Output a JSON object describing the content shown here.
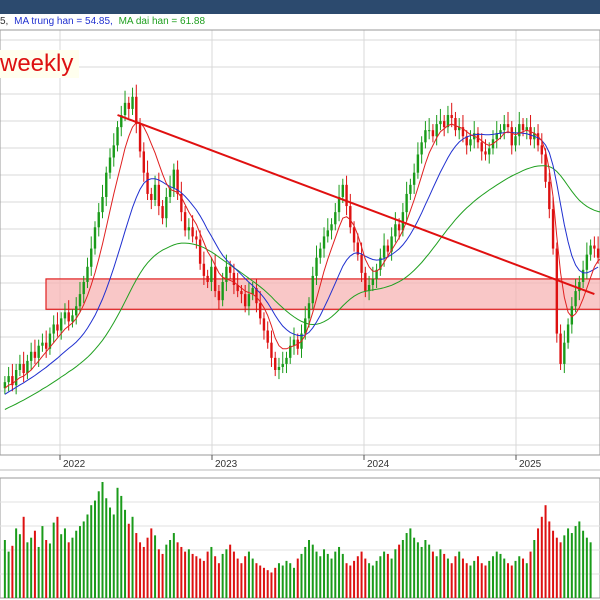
{
  "header": {
    "ma_short_partial": "5,",
    "ma_mid_label": "MA trung han = 54.85,",
    "ma_long_label": "MA dai han = 61.88"
  },
  "timeframe_label": "weekly",
  "colors": {
    "header_bar": "#2c4a6e",
    "up": "#1a9b1a",
    "down": "#dd1111",
    "ma_short": "#e02020",
    "ma_mid": "#2030d0",
    "ma_long": "#20a020",
    "trendline": "#e01010",
    "support_zone": "#f7b4b4"
  },
  "chart_data": [
    {
      "type": "candlestick",
      "x_axis": {
        "ticks": [
          "2022",
          "2023",
          "2024",
          "2025"
        ]
      },
      "price": {
        "closes": [
          34,
          36,
          33,
          38,
          40,
          37,
          41,
          44,
          42,
          46,
          47,
          45,
          50,
          53,
          51,
          55,
          57,
          54,
          56,
          59,
          63,
          67,
          72,
          78,
          85,
          90,
          95,
          103,
          108,
          112,
          118,
          122,
          126,
          124,
          128,
          119,
          110,
          103,
          96,
          94,
          99,
          92,
          88,
          95,
          98,
          104,
          96,
          90,
          84,
          85,
          82,
          81,
          73,
          69,
          67,
          72,
          64,
          61,
          67,
          72,
          70,
          66,
          64,
          63,
          59,
          63,
          65,
          60,
          55,
          51,
          47,
          42,
          38,
          39,
          40,
          42,
          46,
          48,
          45,
          50,
          55,
          60,
          69,
          75,
          78,
          82,
          84,
          86,
          90,
          95,
          99,
          92,
          85,
          80,
          76,
          70,
          64,
          66,
          68,
          71,
          75,
          79,
          77,
          82,
          86,
          84,
          90,
          96,
          99,
          103,
          109,
          113,
          117,
          117,
          115,
          119,
          120,
          118,
          122,
          121,
          117,
          118,
          115,
          112,
          114,
          116,
          113,
          110,
          109,
          111,
          114,
          116,
          117,
          119,
          118,
          112,
          115,
          119,
          117,
          118,
          114,
          116,
          112,
          109,
          100,
          91,
          78,
          50,
          40,
          47,
          53,
          59,
          64,
          67,
          71,
          76,
          79,
          78,
          75
        ],
        "ma_short_values": [
          32,
          33,
          33.5,
          34.5,
          35.5,
          36,
          37,
          38,
          39.5,
          41,
          42.5,
          44,
          45.5,
          47,
          48.5,
          50,
          51.5,
          52.5,
          53.5,
          55,
          57,
          59.5,
          62.5,
          66,
          70,
          74.5,
          79.5,
          85,
          90.5,
          96,
          101,
          106,
          111,
          115,
          118,
          119.5,
          119.5,
          118,
          115.5,
          112.5,
          109.5,
          106,
          102.5,
          99.5,
          97.5,
          97,
          96.5,
          95,
          92.5,
          90,
          88,
          86,
          83,
          80,
          77,
          75,
          72.5,
          70,
          68.5,
          68,
          67.5,
          67,
          66,
          65,
          64,
          63.5,
          63,
          62,
          60.5,
          58.5,
          56,
          52.5,
          48.5,
          46,
          45,
          45,
          45.5,
          46,
          46.5,
          47.5,
          49.5,
          53,
          57,
          61.5,
          66,
          70.5,
          74.5,
          78,
          81.5,
          85,
          88,
          88.5,
          87.5,
          85.5,
          82.5,
          78.5,
          74.5,
          72,
          70.5,
          70.5,
          71.5,
          73.5,
          75.5,
          77.5,
          79.5,
          81.5,
          84,
          87,
          90.5,
          94,
          98,
          102,
          106,
          109.5,
          112,
          114.5,
          116.5,
          117.5,
          118.5,
          119,
          118.5,
          118,
          117.5,
          116.5,
          115.5,
          115,
          114.5,
          113.5,
          112.5,
          112,
          112.5,
          113.5,
          114.5,
          116,
          116.5,
          116,
          115.5,
          116,
          116.5,
          117,
          116.5,
          116,
          115,
          113.5,
          110,
          104,
          95,
          82,
          70,
          62,
          57,
          55.5,
          56.5,
          58.5,
          61.5,
          65,
          68.5,
          72,
          74,
          75
        ],
        "ma_mid_values": [
          30,
          30.8,
          31.5,
          32.3,
          33.1,
          33.8,
          34.6,
          35.4,
          36.2,
          37.1,
          38,
          38.9,
          39.9,
          40.9,
          41.9,
          43,
          44.1,
          45.1,
          46.1,
          47.2,
          48.5,
          50,
          51.8,
          53.8,
          56,
          58.6,
          61.4,
          64.6,
          68,
          71.7,
          75.6,
          79.6,
          83.7,
          87.7,
          91.5,
          94.8,
          97.5,
          99.5,
          100.6,
          101,
          101,
          100.6,
          99.9,
          99.1,
          98.4,
          97.9,
          97.3,
          96.4,
          95.2,
          93.8,
          92.3,
          90.7,
          88.8,
          86.6,
          84.2,
          82.1,
          79.9,
          77.7,
          75.8,
          74.3,
          73,
          71.8,
          70.6,
          69.4,
          68.1,
          66.9,
          65.8,
          64.6,
          63.3,
          61.8,
          60.1,
          58.1,
          56,
          54.1,
          52.5,
          51.3,
          50.4,
          49.8,
          49.4,
          49.3,
          49.6,
          50.4,
          51.9,
          53.8,
          56,
          58.5,
          61.1,
          63.8,
          66.6,
          69.4,
          72.2,
          74.2,
          75.6,
          76.4,
          76.6,
          76.2,
          75.5,
          74.9,
          74.4,
          74.2,
          74.3,
          74.7,
          75.3,
          76,
          76.9,
          77.9,
          79.2,
          80.8,
          82.7,
          84.8,
          87.2,
          89.8,
          92.5,
          95.2,
          97.9,
          100.6,
          103.2,
          105.6,
          107.9,
          110,
          111.7,
          113.1,
          114.1,
          114.8,
          115.2,
          115.5,
          115.6,
          115.6,
          115.5,
          115.5,
          115.6,
          115.8,
          116,
          116.2,
          116.3,
          116.2,
          116.1,
          116.1,
          116,
          115.8,
          115.4,
          115,
          114.5,
          113.6,
          112.1,
          109.6,
          105.3,
          99.3,
          92.5,
          85.9,
          80.2,
          75.7,
          72.6,
          70.8,
          70,
          70,
          70.5,
          71.2,
          71.9
        ],
        "ma_long_values": [
          25,
          25.6,
          26.2,
          26.8,
          27.5,
          28.1,
          28.8,
          29.5,
          30.2,
          30.9,
          31.7,
          32.4,
          33.2,
          34,
          34.8,
          35.7,
          36.5,
          37.4,
          38.2,
          39.1,
          40.1,
          41.1,
          42.2,
          43.4,
          44.8,
          46.2,
          47.8,
          49.6,
          51.5,
          53.6,
          55.8,
          58.1,
          60.5,
          63,
          65.4,
          67.7,
          69.8,
          71.7,
          73.3,
          74.6,
          75.8,
          76.7,
          77.5,
          78.1,
          78.7,
          79.2,
          79.6,
          79.8,
          79.8,
          79.7,
          79.5,
          79.2,
          78.8,
          78.3,
          77.6,
          76.9,
          76.1,
          75.2,
          74.3,
          73.4,
          72.6,
          71.7,
          70.9,
          70,
          69.1,
          68.2,
          67.3,
          66.4,
          65.4,
          64.4,
          63.3,
          62.1,
          60.8,
          59.6,
          58.5,
          57.4,
          56.4,
          55.5,
          54.7,
          54,
          53.5,
          53.1,
          53,
          53.1,
          53.4,
          53.9,
          54.6,
          55.5,
          56.6,
          57.8,
          59.1,
          60.3,
          61.4,
          62.3,
          63,
          63.6,
          63.9,
          64.2,
          64.4,
          64.6,
          64.8,
          65.1,
          65.5,
          65.9,
          66.5,
          67.1,
          67.8,
          68.7,
          69.7,
          70.8,
          72.1,
          73.4,
          74.9,
          76.4,
          78,
          79.6,
          81.3,
          82.9,
          84.5,
          86,
          87.5,
          88.9,
          90.2,
          91.4,
          92.5,
          93.6,
          94.6,
          95.5,
          96.4,
          97.3,
          98.1,
          98.9,
          99.7,
          100.5,
          101.2,
          101.9,
          102.5,
          103.1,
          103.7,
          104.2,
          104.6,
          105,
          105.2,
          105.3,
          105.3,
          105,
          104.4,
          103.4,
          102,
          100.4,
          98.6,
          96.9,
          95.3,
          93.9,
          92.8,
          91.9,
          91.2,
          90.6,
          90.2,
          89.9
        ],
        "y_range": [
          10,
          150
        ]
      },
      "volume": {
        "values": [
          50,
          40,
          45,
          60,
          55,
          70,
          48,
          52,
          58,
          44,
          62,
          50,
          47,
          65,
          70,
          55,
          60,
          48,
          52,
          58,
          62,
          66,
          72,
          80,
          84,
          92,
          100,
          86,
          78,
          72,
          95,
          88,
          76,
          64,
          70,
          56,
          48,
          44,
          52,
          60,
          54,
          42,
          38,
          46,
          50,
          56,
          48,
          44,
          40,
          42,
          38,
          36,
          34,
          32,
          40,
          44,
          36,
          30,
          38,
          42,
          46,
          40,
          34,
          30,
          36,
          40,
          34,
          30,
          28,
          26,
          24,
          22,
          26,
          30,
          28,
          32,
          30,
          26,
          34,
          38,
          44,
          50,
          46,
          40,
          36,
          42,
          38,
          34,
          40,
          44,
          38,
          30,
          28,
          32,
          36,
          40,
          34,
          30,
          28,
          32,
          36,
          40,
          38,
          34,
          42,
          46,
          50,
          56,
          60,
          52,
          48,
          44,
          50,
          46,
          40,
          36,
          42,
          38,
          34,
          30,
          36,
          40,
          34,
          30,
          28,
          32,
          36,
          30,
          28,
          32,
          36,
          40,
          38,
          34,
          30,
          28,
          32,
          36,
          34,
          30,
          40,
          50,
          60,
          70,
          80,
          66,
          58,
          52,
          48,
          54,
          60,
          56,
          62,
          66,
          58,
          52,
          48
        ],
        "y_max": 100
      },
      "overlays": {
        "downtrend_line": {
          "from_index": 30,
          "from_value": 122,
          "to_index": 157,
          "to_value": 63
        },
        "support_zone": {
          "low": 58,
          "high": 68
        }
      }
    }
  ]
}
